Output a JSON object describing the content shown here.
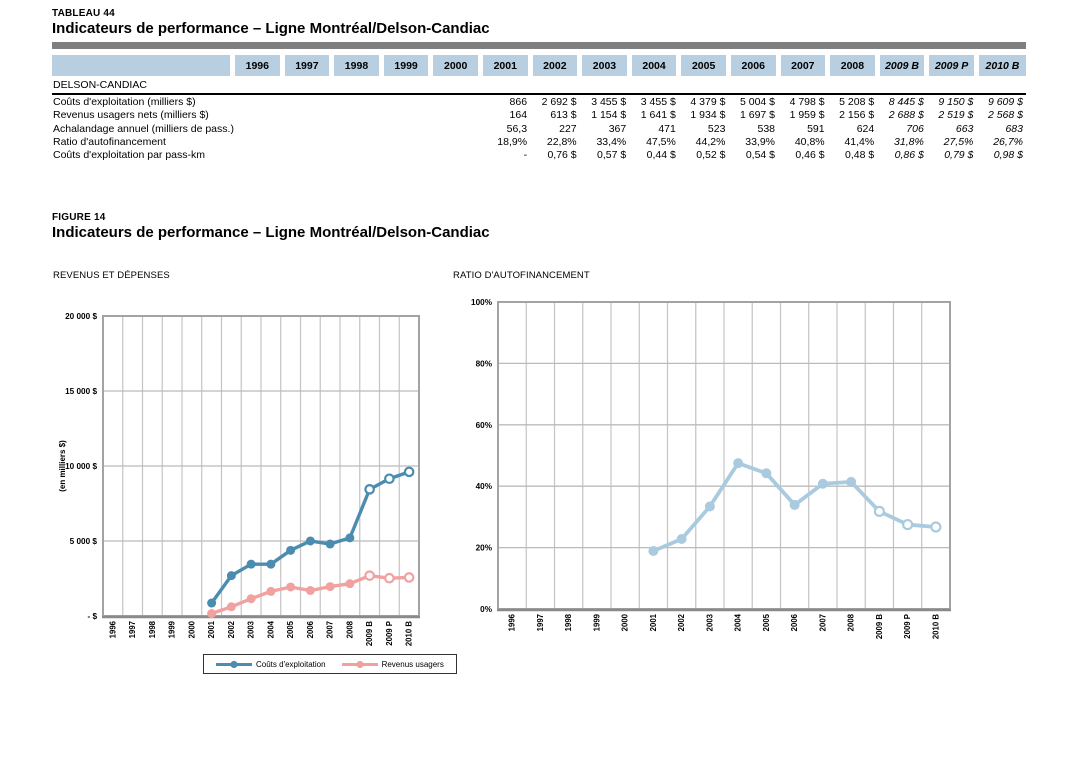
{
  "colors": {
    "table_header_bg": "#b7cfe1",
    "divider_bar": "#7f7f7f",
    "grid_line": "#c4c4c4",
    "plot_frame": "#a3a3a3",
    "axis_line": "#8a8a8a",
    "series_costs": "#4b8cb0",
    "series_revenues": "#f1a1a0",
    "series_ratio": "#aacbdf"
  },
  "page": {
    "table": {
      "eyebrow": "TABLEAU 44",
      "title": "Indicateurs de performance – Ligne Montréal/Delson-Candiac",
      "section_label": "DELSON-CANDIAC",
      "col_headers": [
        "1996",
        "1997",
        "1998",
        "1999",
        "2000",
        "2001",
        "2002",
        "2003",
        "2004",
        "2005",
        "2006",
        "2007",
        "2008",
        "2009 B",
        "2009 P",
        "2010 B"
      ],
      "italic_cols_from": 13,
      "rows": [
        {
          "label": "Coûts d'exploitation (milliers $)",
          "values": [
            "",
            "",
            "",
            "",
            "",
            "866",
            "2 692 $",
            "3 455 $",
            "3 455 $",
            "4 379 $",
            "5 004 $",
            "4 798 $",
            "5 208 $",
            "8 445 $",
            "9 150 $",
            "9 609 $"
          ]
        },
        {
          "label": "Revenus usagers nets (milliers $)",
          "values": [
            "",
            "",
            "",
            "",
            "",
            "164",
            "613 $",
            "1 154 $",
            "1 641 $",
            "1 934 $",
            "1 697 $",
            "1 959 $",
            "2 156 $",
            "2 688 $",
            "2 519 $",
            "2 568 $"
          ]
        },
        {
          "label": "Achalandage annuel (milliers de pass.)",
          "values": [
            "",
            "",
            "",
            "",
            "",
            "56,3",
            "227",
            "367",
            "471",
            "523",
            "538",
            "591",
            "624",
            "706",
            "663",
            "683"
          ]
        },
        {
          "label": "Ratio d'autofinancement",
          "values": [
            "",
            "",
            "",
            "",
            "",
            "18,9%",
            "22,8%",
            "33,4%",
            "47,5%",
            "44,2%",
            "33,9%",
            "40,8%",
            "41,4%",
            "31,8%",
            "27,5%",
            "26,7%"
          ]
        },
        {
          "label": "Coûts d'exploitation par pass-km",
          "values": [
            "",
            "",
            "",
            "",
            "",
            "-",
            "0,76 $",
            "0,57 $",
            "0,44 $",
            "0,52 $",
            "0,54 $",
            "0,46 $",
            "0,48 $",
            "0,86 $",
            "0,79 $",
            "0,98 $"
          ]
        }
      ]
    },
    "figure": {
      "eyebrow": "FIGURE 14",
      "title": "Indicateurs de performance – Ligne Montréal/Delson-Candiac"
    }
  },
  "chart_data": [
    {
      "type": "line",
      "title": "REVENUS ET DÉPENSES",
      "ylabel": "(en milliers $)",
      "categories": [
        "1996",
        "1997",
        "1998",
        "1999",
        "2000",
        "2001",
        "2002",
        "2003",
        "2004",
        "2005",
        "2006",
        "2007",
        "2008",
        "2009 B",
        "2009 P",
        "2010 B"
      ],
      "ylim": [
        0,
        20000
      ],
      "ytick_step": 5000,
      "ytick_labels": [
        "-  $",
        "5 000  $",
        "10 000  $",
        "15 000  $",
        "20 000  $"
      ],
      "grid": true,
      "legend_position": "bottom",
      "series": [
        {
          "name": "Coûts d'exploitation",
          "color": "#4b8cb0",
          "start_category_index": 5,
          "open_markers_from_value_index": 8,
          "values": [
            866,
            2692,
            3455,
            3455,
            4379,
            5004,
            4798,
            5208,
            8445,
            9150,
            9609
          ]
        },
        {
          "name": "Revenus usagers",
          "color": "#f1a1a0",
          "start_category_index": 5,
          "open_markers_from_value_index": 8,
          "values": [
            164,
            613,
            1154,
            1641,
            1934,
            1697,
            1959,
            2156,
            2688,
            2519,
            2568
          ]
        }
      ]
    },
    {
      "type": "line",
      "title": "RATIO D'AUTOFINANCEMENT",
      "ylabel": "",
      "categories": [
        "1996",
        "1997",
        "1998",
        "1999",
        "2000",
        "2001",
        "2002",
        "2003",
        "2004",
        "2005",
        "2006",
        "2007",
        "2008",
        "2009 B",
        "2009 P",
        "2010 B"
      ],
      "ylim": [
        0,
        100
      ],
      "ytick_step": 20,
      "ytick_labels": [
        "0%",
        "20%",
        "40%",
        "60%",
        "80%",
        "100%"
      ],
      "grid": true,
      "legend_position": "none",
      "series": [
        {
          "name": "Ratio d'autofinancement",
          "color": "#aacbdf",
          "start_category_index": 5,
          "open_markers_from_value_index": 8,
          "values": [
            18.9,
            22.8,
            33.4,
            47.5,
            44.2,
            33.9,
            40.8,
            41.4,
            31.8,
            27.5,
            26.7
          ]
        }
      ]
    }
  ]
}
